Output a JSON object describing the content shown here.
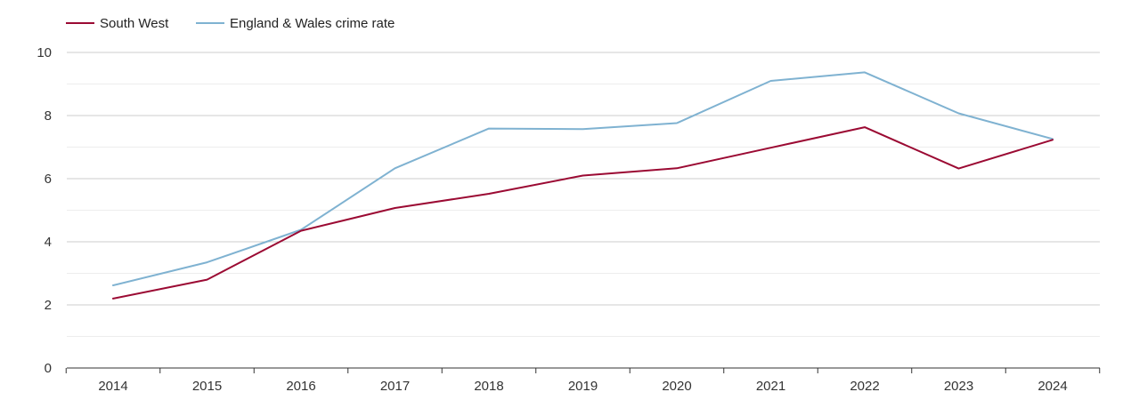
{
  "chart_data": {
    "type": "line",
    "title": "",
    "xlabel": "",
    "ylabel": "",
    "x": [
      "2014",
      "2015",
      "2016",
      "2017",
      "2018",
      "2019",
      "2020",
      "2021",
      "2022",
      "2023",
      "2024"
    ],
    "ylim": [
      0,
      10
    ],
    "y_ticks": [
      "0",
      "2",
      "4",
      "6",
      "8",
      "10"
    ],
    "grid": true,
    "legend_position": "top-left",
    "series": [
      {
        "name": "South West",
        "color": "#9b0a33",
        "values": [
          2.2,
          2.8,
          4.35,
          5.07,
          5.52,
          6.1,
          6.33,
          6.98,
          7.63,
          6.32,
          7.23
        ]
      },
      {
        "name": "England & Wales crime rate",
        "color": "#7fb2d1",
        "values": [
          2.62,
          3.35,
          4.38,
          6.33,
          7.59,
          7.57,
          7.76,
          9.1,
          9.37,
          8.07,
          7.26
        ]
      }
    ]
  }
}
